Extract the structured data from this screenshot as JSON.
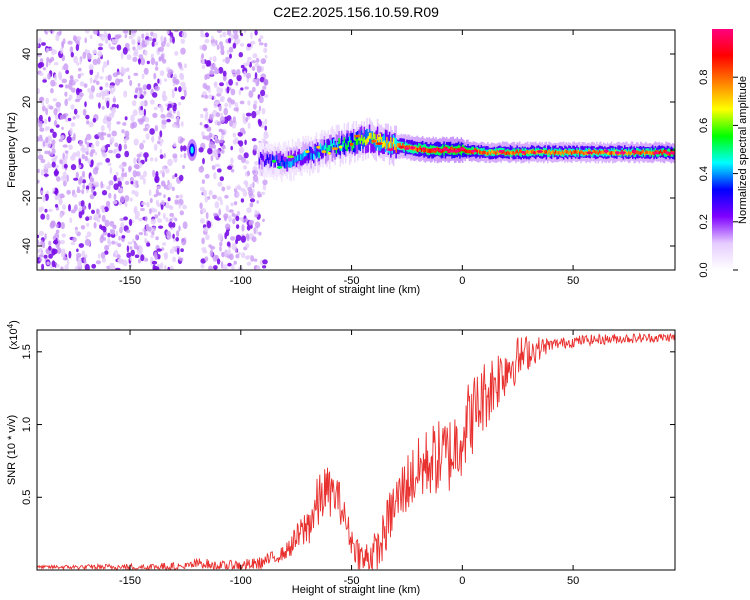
{
  "chart_data": [
    {
      "id": "spectrogram",
      "type": "heatmap",
      "title": "C2E2.2025.156.10.59.R09",
      "xlabel": "Height of straight line (km)",
      "ylabel": "Frequency (Hz)",
      "xlim": [
        -192,
        96
      ],
      "ylim": [
        -50,
        50
      ],
      "xticks": [
        -150,
        -100,
        -50,
        0,
        50
      ],
      "yticks": [
        -40,
        -20,
        0,
        20,
        40
      ],
      "colorbar": {
        "label": "Normalized spectral amplitude",
        "range": [
          0,
          1
        ],
        "ticks": [
          "0.0",
          "0.2",
          "0.4",
          "0.6",
          "0.8"
        ],
        "tick_values": [
          0,
          0.2,
          0.4,
          0.6,
          0.8
        ],
        "colors": [
          "#ffffff",
          "#e6ccff",
          "#7f00ff",
          "#0000ff",
          "#00ffff",
          "#00ff00",
          "#ffff00",
          "#ff8000",
          "#ff0000",
          "#ff0080"
        ]
      },
      "noise_regions": [
        {
          "x": [
            -192,
            -125
          ],
          "amplitude": 0.1
        },
        {
          "x": [
            -118,
            -88
          ],
          "amplitude": 0.08
        }
      ],
      "signal_track": [
        {
          "x": -122,
          "freq": 0,
          "amp": 0.4
        },
        {
          "x": -90,
          "freq": -4,
          "amp": 0.25
        },
        {
          "x": -80,
          "freq": -5,
          "amp": 0.35
        },
        {
          "x": -70,
          "freq": -2,
          "amp": 0.4
        },
        {
          "x": -60,
          "freq": 1,
          "amp": 0.45
        },
        {
          "x": -50,
          "freq": 3,
          "amp": 0.55
        },
        {
          "x": -42,
          "freq": 5,
          "amp": 0.65
        },
        {
          "x": -35,
          "freq": 3,
          "amp": 0.7
        },
        {
          "x": -25,
          "freq": 1,
          "amp": 0.8
        },
        {
          "x": -15,
          "freq": 0,
          "amp": 0.85
        },
        {
          "x": 0,
          "freq": 0,
          "amp": 0.9
        },
        {
          "x": 10,
          "freq": -1,
          "amp": 0.8
        },
        {
          "x": 20,
          "freq": -1,
          "amp": 0.82
        },
        {
          "x": 40,
          "freq": -1,
          "amp": 0.8
        },
        {
          "x": 60,
          "freq": -1,
          "amp": 0.78
        },
        {
          "x": 80,
          "freq": -1,
          "amp": 0.8
        },
        {
          "x": 96,
          "freq": -1,
          "amp": 0.85
        }
      ]
    },
    {
      "id": "snr",
      "type": "line",
      "xlabel": "Height of straight line (km)",
      "ylabel": "SNR (10 * v/v)",
      "multiplier": "(x10⁴)",
      "multiplier_base": "(x10",
      "multiplier_exp": "4",
      "multiplier_close": ")",
      "xlim": [
        -192,
        96
      ],
      "ylim": [
        0,
        1.65
      ],
      "xticks": [
        -150,
        -100,
        -50,
        0,
        50
      ],
      "yticks": [
        "0.5",
        "1.0",
        "1.5"
      ],
      "ytick_values": [
        0.5,
        1.0,
        1.5
      ],
      "color": "#e8302e",
      "series_envelope": [
        {
          "x": -192,
          "y": 0.02
        },
        {
          "x": -125,
          "y": 0.02
        },
        {
          "x": -118,
          "y": 0.05
        },
        {
          "x": -110,
          "y": 0.02
        },
        {
          "x": -92,
          "y": 0.04
        },
        {
          "x": -80,
          "y": 0.12
        },
        {
          "x": -70,
          "y": 0.3
        },
        {
          "x": -62,
          "y": 0.55
        },
        {
          "x": -56,
          "y": 0.5
        },
        {
          "x": -50,
          "y": 0.2
        },
        {
          "x": -45,
          "y": 0.07
        },
        {
          "x": -38,
          "y": 0.12
        },
        {
          "x": -32,
          "y": 0.4
        },
        {
          "x": -25,
          "y": 0.6
        },
        {
          "x": -15,
          "y": 0.75
        },
        {
          "x": -5,
          "y": 0.8
        },
        {
          "x": 0,
          "y": 0.95
        },
        {
          "x": 10,
          "y": 1.2
        },
        {
          "x": 20,
          "y": 1.4
        },
        {
          "x": 30,
          "y": 1.5
        },
        {
          "x": 40,
          "y": 1.55
        },
        {
          "x": 55,
          "y": 1.58
        },
        {
          "x": 70,
          "y": 1.59
        },
        {
          "x": 96,
          "y": 1.6
        }
      ],
      "noise_amplitude": [
        {
          "x": -192,
          "a": 0.01
        },
        {
          "x": -80,
          "a": 0.05
        },
        {
          "x": -65,
          "a": 0.2
        },
        {
          "x": -50,
          "a": 0.1
        },
        {
          "x": -30,
          "a": 0.2
        },
        {
          "x": 0,
          "a": 0.3
        },
        {
          "x": 20,
          "a": 0.2
        },
        {
          "x": 40,
          "a": 0.04
        },
        {
          "x": 96,
          "a": 0.03
        }
      ]
    }
  ]
}
